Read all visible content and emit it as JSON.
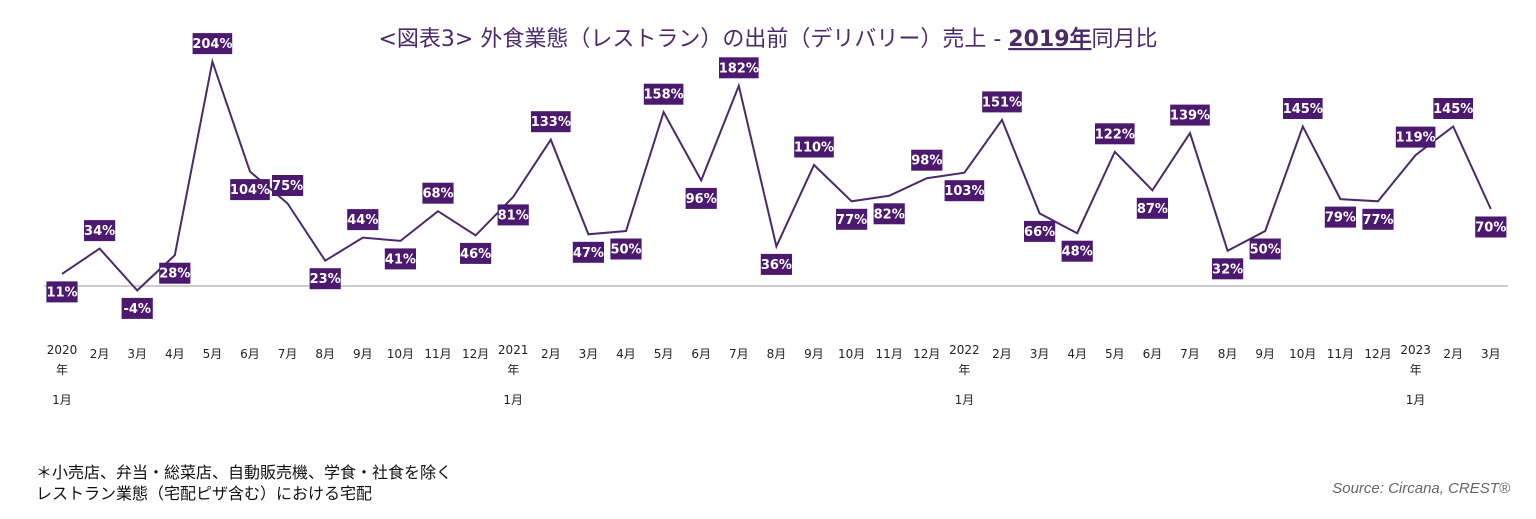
{
  "chart_data": {
    "type": "line",
    "title_prefix": "<図表3> 外食業態（レストラン）の出前（デリバリー）売上 - ",
    "title_emphasis": "2019年",
    "title_suffix": "同月比",
    "series": [
      {
        "values": [
          11,
          34,
          -4,
          28,
          204,
          104,
          75,
          23,
          44,
          41,
          68,
          46,
          81,
          133,
          47,
          50,
          158,
          96,
          182,
          36,
          110,
          77,
          82,
          98,
          103,
          151,
          66,
          48,
          122,
          87,
          139,
          32,
          50,
          145,
          79,
          77,
          119,
          145,
          70
        ],
        "labels": [
          "11%",
          "34%",
          "-4%",
          "28%",
          "204%",
          "104%",
          "75%",
          "23%",
          "44%",
          "41%",
          "68%",
          "46%",
          "81%",
          "133%",
          "47%",
          "50%",
          "158%",
          "96%",
          "182%",
          "36%",
          "110%",
          "77%",
          "82%",
          "98%",
          "103%",
          "151%",
          "66%",
          "48%",
          "122%",
          "87%",
          "139%",
          "32%",
          "50%",
          "145%",
          "79%",
          "77%",
          "119%",
          "145%",
          "70%"
        ]
      }
    ],
    "x": [
      [
        "2020",
        "年",
        "1月"
      ],
      [
        "2月"
      ],
      [
        "3月"
      ],
      [
        "4月"
      ],
      [
        "5月"
      ],
      [
        "6月"
      ],
      [
        "7月"
      ],
      [
        "8月"
      ],
      [
        "9月"
      ],
      [
        "10月"
      ],
      [
        "11月"
      ],
      [
        "12月"
      ],
      [
        "2021",
        "年",
        "1月"
      ],
      [
        "2月"
      ],
      [
        "3月"
      ],
      [
        "4月"
      ],
      [
        "5月"
      ],
      [
        "6月"
      ],
      [
        "7月"
      ],
      [
        "8月"
      ],
      [
        "9月"
      ],
      [
        "10月"
      ],
      [
        "11月"
      ],
      [
        "12月"
      ],
      [
        "2022",
        "年",
        "1月"
      ],
      [
        "2月"
      ],
      [
        "3月"
      ],
      [
        "4月"
      ],
      [
        "5月"
      ],
      [
        "6月"
      ],
      [
        "7月"
      ],
      [
        "8月"
      ],
      [
        "9月"
      ],
      [
        "10月"
      ],
      [
        "11月"
      ],
      [
        "12月"
      ],
      [
        "2023",
        "年",
        "1月"
      ],
      [
        "2月"
      ],
      [
        "3月"
      ]
    ],
    "ylim": [
      -15,
      220
    ],
    "line_color": "#4b2a6a",
    "label_bg": "#4b1a6e",
    "zero_line_color": "#9a9a9a"
  },
  "footnote": {
    "line1": "＊小売店、弁当・総菜店、自動販売機、学食・社食を除く",
    "line2": "レストラン業態（宅配ピザ含む）における宅配"
  },
  "source": "Source: Circana, CREST®"
}
